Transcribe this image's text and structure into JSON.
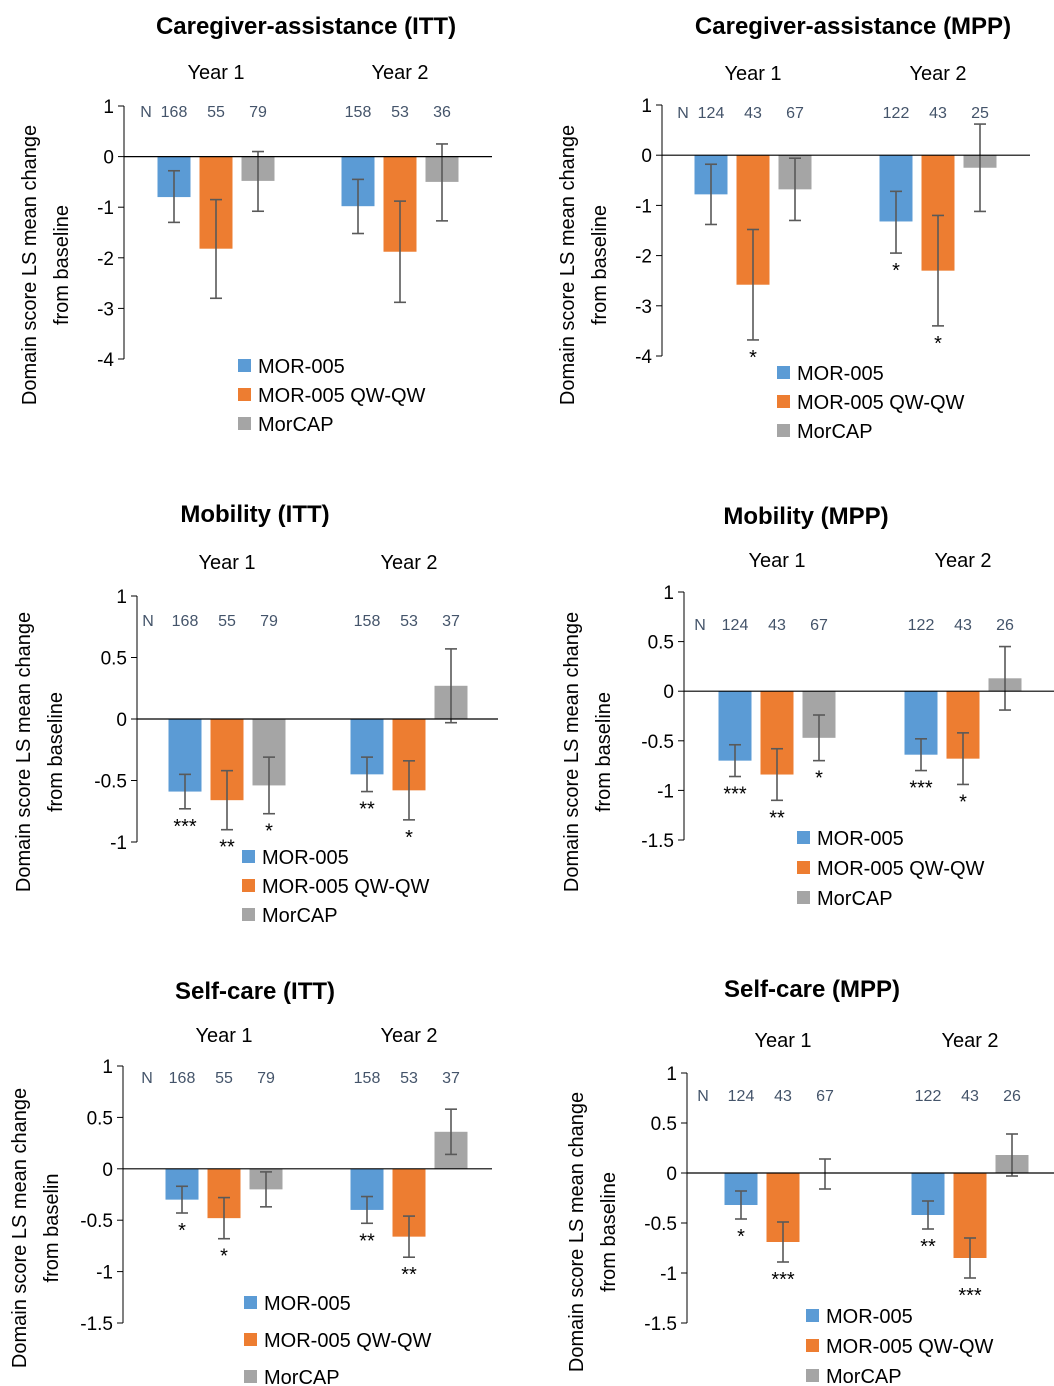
{
  "figure": {
    "series_colors": {
      "MOR-005": "#5B9BD5",
      "MOR-005 QW-QW": "#ED7D31",
      "MorCAP": "#A5A5A5"
    },
    "n_prefix": "N"
  },
  "chart_data": [
    {
      "type": "bar",
      "title": "Caregiver-assistance (ITT)",
      "ylabel": [
        "Domain score LS mean change",
        "from baseline"
      ],
      "ylim": [
        -4,
        1
      ],
      "yticks": [
        1,
        0,
        -1,
        -2,
        -3,
        -4
      ],
      "ytick_labels": [
        "1",
        "0",
        "-1",
        "-2",
        "-3",
        "-4"
      ],
      "categories": [
        "Year 1",
        "Year 2"
      ],
      "legend_position": "bottom-center",
      "series": [
        {
          "name": "MOR-005",
          "color": "#5B9BD5",
          "values": [
            -0.8,
            -0.98
          ],
          "err_low": [
            -1.3,
            -1.52
          ],
          "err_high": [
            -0.28,
            -0.45
          ],
          "n": [
            "168",
            "158"
          ],
          "sig": [
            "",
            ""
          ]
        },
        {
          "name": "MOR-005 QW-QW",
          "color": "#ED7D31",
          "values": [
            -1.82,
            -1.88
          ],
          "err_low": [
            -2.8,
            -2.88
          ],
          "err_high": [
            -0.85,
            -0.88
          ],
          "n": [
            "55",
            "53"
          ],
          "sig": [
            "",
            ""
          ]
        },
        {
          "name": "MorCAP",
          "color": "#A5A5A5",
          "values": [
            -0.48,
            -0.5
          ],
          "err_low": [
            -1.08,
            -1.27
          ],
          "err_high": [
            0.1,
            0.25
          ],
          "n": [
            "79",
            "36"
          ],
          "sig": [
            "",
            ""
          ]
        }
      ]
    },
    {
      "type": "bar",
      "title": "Caregiver-assistance (MPP)",
      "ylabel": [
        "Domain score LS mean change",
        "from baseline"
      ],
      "ylim": [
        -4,
        1
      ],
      "yticks": [
        1,
        0,
        -1,
        -2,
        -3,
        -4
      ],
      "ytick_labels": [
        "1",
        "0",
        "-1",
        "-2",
        "-3",
        "-4"
      ],
      "categories": [
        "Year 1",
        "Year 2"
      ],
      "legend_position": "bottom-center",
      "series": [
        {
          "name": "MOR-005",
          "color": "#5B9BD5",
          "values": [
            -0.78,
            -1.32
          ],
          "err_low": [
            -1.38,
            -1.95
          ],
          "err_high": [
            -0.18,
            -0.72
          ],
          "n": [
            "124",
            "122"
          ],
          "sig": [
            "",
            "*"
          ]
        },
        {
          "name": "MOR-005 QW-QW",
          "color": "#ED7D31",
          "values": [
            -2.58,
            -2.3
          ],
          "err_low": [
            -3.68,
            -3.4
          ],
          "err_high": [
            -1.48,
            -1.2
          ],
          "n": [
            "43",
            "43"
          ],
          "sig": [
            "*",
            "*"
          ]
        },
        {
          "name": "MorCAP",
          "color": "#A5A5A5",
          "values": [
            -0.68,
            -0.25
          ],
          "err_low": [
            -1.3,
            -1.12
          ],
          "err_high": [
            -0.06,
            0.62
          ],
          "n": [
            "67",
            "25"
          ],
          "sig": [
            "",
            ""
          ]
        }
      ]
    },
    {
      "type": "bar",
      "title": "Mobility (ITT)",
      "ylabel": [
        "Domain score LS mean change",
        "from baseline"
      ],
      "ylim": [
        -1,
        1
      ],
      "yticks": [
        1,
        0.5,
        0,
        -0.5,
        -1
      ],
      "ytick_labels": [
        "1",
        "0.5",
        "0",
        "-0.5",
        "-1"
      ],
      "categories": [
        "Year 1",
        "Year 2"
      ],
      "legend_position": "bottom-right",
      "series": [
        {
          "name": "MOR-005",
          "color": "#5B9BD5",
          "values": [
            -0.59,
            -0.45
          ],
          "err_low": [
            -0.73,
            -0.59
          ],
          "err_high": [
            -0.45,
            -0.31
          ],
          "n": [
            "168",
            "158"
          ],
          "sig": [
            "***",
            "**"
          ]
        },
        {
          "name": "MOR-005 QW-QW",
          "color": "#ED7D31",
          "values": [
            -0.66,
            -0.58
          ],
          "err_low": [
            -0.9,
            -0.82
          ],
          "err_high": [
            -0.42,
            -0.34
          ],
          "n": [
            "55",
            "53"
          ],
          "sig": [
            "**",
            "*"
          ]
        },
        {
          "name": "MorCAP",
          "color": "#A5A5A5",
          "values": [
            -0.54,
            0.27
          ],
          "err_low": [
            -0.77,
            -0.03
          ],
          "err_high": [
            -0.31,
            0.57
          ],
          "n": [
            "79",
            "37"
          ],
          "sig": [
            "*",
            ""
          ]
        }
      ]
    },
    {
      "type": "bar",
      "title": "Mobility (MPP)",
      "ylabel": [
        "Domain score LS mean change",
        "from baseline"
      ],
      "ylim": [
        -1.5,
        1
      ],
      "yticks": [
        1,
        0.5,
        0,
        -0.5,
        -1,
        -1.5
      ],
      "ytick_labels": [
        "1",
        "0.5",
        "0",
        "-0.5",
        "-1",
        "-1.5"
      ],
      "categories": [
        "Year 1",
        "Year 2"
      ],
      "legend_position": "bottom-right",
      "series": [
        {
          "name": "MOR-005",
          "color": "#5B9BD5",
          "values": [
            -0.7,
            -0.64
          ],
          "err_low": [
            -0.86,
            -0.8
          ],
          "err_high": [
            -0.54,
            -0.48
          ],
          "n": [
            "124",
            "122"
          ],
          "sig": [
            "***",
            "***"
          ]
        },
        {
          "name": "MOR-005 QW-QW",
          "color": "#ED7D31",
          "values": [
            -0.84,
            -0.68
          ],
          "err_low": [
            -1.1,
            -0.94
          ],
          "err_high": [
            -0.58,
            -0.42
          ],
          "n": [
            "43",
            "43"
          ],
          "sig": [
            "**",
            "*"
          ]
        },
        {
          "name": "MorCAP",
          "color": "#A5A5A5",
          "values": [
            -0.47,
            0.13
          ],
          "err_low": [
            -0.7,
            -0.19
          ],
          "err_high": [
            -0.24,
            0.45
          ],
          "n": [
            "67",
            "26"
          ],
          "sig": [
            "*",
            ""
          ]
        }
      ]
    },
    {
      "type": "bar",
      "title": "Self-care (ITT)",
      "ylabel": [
        "Domain score LS mean change",
        "from baselin"
      ],
      "ylim": [
        -1.5,
        1
      ],
      "yticks": [
        1,
        0.5,
        0,
        -0.5,
        -1,
        -1.5
      ],
      "ytick_labels": [
        "1",
        "0.5",
        "0",
        "-0.5",
        "-1",
        "-1.5"
      ],
      "categories": [
        "Year 1",
        "Year 2"
      ],
      "legend_position": "bottom-right",
      "series": [
        {
          "name": "MOR-005",
          "color": "#5B9BD5",
          "values": [
            -0.3,
            -0.4
          ],
          "err_low": [
            -0.43,
            -0.53
          ],
          "err_high": [
            -0.17,
            -0.27
          ],
          "n": [
            "168",
            "158"
          ],
          "sig": [
            "*",
            "**"
          ]
        },
        {
          "name": "MOR-005 QW-QW",
          "color": "#ED7D31",
          "values": [
            -0.48,
            -0.66
          ],
          "err_low": [
            -0.68,
            -0.86
          ],
          "err_high": [
            -0.28,
            -0.46
          ],
          "n": [
            "55",
            "53"
          ],
          "sig": [
            "*",
            "**"
          ]
        },
        {
          "name": "MorCAP",
          "color": "#A5A5A5",
          "values": [
            -0.2,
            0.36
          ],
          "err_low": [
            -0.37,
            0.14
          ],
          "err_high": [
            -0.03,
            0.58
          ],
          "n": [
            "79",
            "37"
          ],
          "sig": [
            "",
            ""
          ]
        }
      ]
    },
    {
      "type": "bar",
      "title": "Self-care (MPP)",
      "ylabel": [
        "Domain score LS mean change",
        "from baseline"
      ],
      "ylim": [
        -1.5,
        1
      ],
      "yticks": [
        1,
        0.5,
        0,
        -0.5,
        -1,
        -1.5
      ],
      "ytick_labels": [
        "1",
        "0.5",
        "0",
        "-0.5",
        "-1",
        "-1.5"
      ],
      "categories": [
        "Year 1",
        "Year 2"
      ],
      "legend_position": "bottom-right",
      "series": [
        {
          "name": "MOR-005",
          "color": "#5B9BD5",
          "values": [
            -0.32,
            -0.42
          ],
          "err_low": [
            -0.46,
            -0.56
          ],
          "err_high": [
            -0.18,
            -0.28
          ],
          "n": [
            "124",
            "122"
          ],
          "sig": [
            "*",
            "**"
          ]
        },
        {
          "name": "MOR-005 QW-QW",
          "color": "#ED7D31",
          "values": [
            -0.69,
            -0.85
          ],
          "err_low": [
            -0.89,
            -1.05
          ],
          "err_high": [
            -0.49,
            -0.65
          ],
          "n": [
            "43",
            "43"
          ],
          "sig": [
            "***",
            "***"
          ]
        },
        {
          "name": "MorCAP",
          "color": "#A5A5A5",
          "values": [
            0,
            0.18
          ],
          "err_low": [
            -0.16,
            -0.03
          ],
          "err_high": [
            0.14,
            0.39
          ],
          "n": [
            "67",
            "26"
          ],
          "sig": [
            "",
            ""
          ]
        }
      ]
    }
  ]
}
